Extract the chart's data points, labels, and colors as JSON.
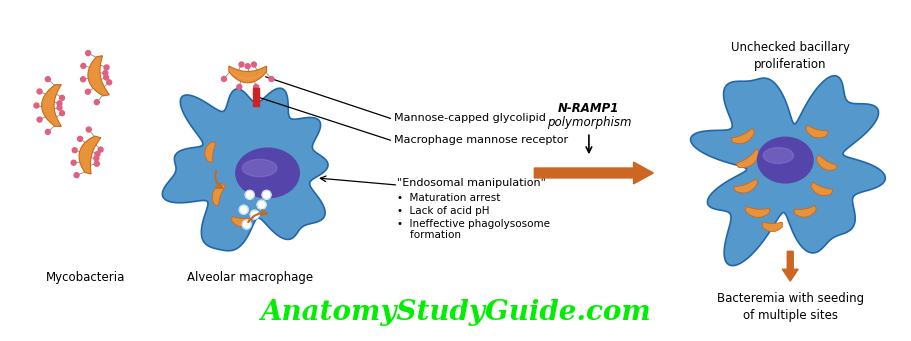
{
  "bg_color": "#ffffff",
  "watermark_text": "AnatomyStudyGuide.com",
  "watermark_color": "#00ee00",
  "watermark_fontsize": 20,
  "mycobacteria_label": "Mycobacteria",
  "macrophage_label": "Alveolar macrophage",
  "label1": "Mannose-capped glycolipid",
  "label2": "Macrophage mannose receptor",
  "label3": "\"Endosomal manipulation\"",
  "bullet1": "•  Maturation arrest",
  "bullet2": "•  Lack of acid pH",
  "bullet3": "•  Ineffective phagolysosome",
  "bullet3b": "    formation",
  "nramp_line1": "N-RAMP1",
  "nramp_line2": "polymorphism",
  "top_right_label": "Unchecked bacillary\nproliferation",
  "bottom_right_label": "Bacteremia with seeding\nof multiple sites",
  "orange_color": "#E8923A",
  "dark_orange_color": "#C86820",
  "orange_light": "#F0A858",
  "blue_cell_color": "#5599CC",
  "blue_cell_edge": "#2266AA",
  "nucleus_color": "#5544AA",
  "nucleus_light": "#8877CC",
  "pink_color": "#E06080",
  "red_bar_color": "#CC2222",
  "arrow_color": "#CC6622",
  "line_color": "#444444",
  "text_color": "#111111"
}
